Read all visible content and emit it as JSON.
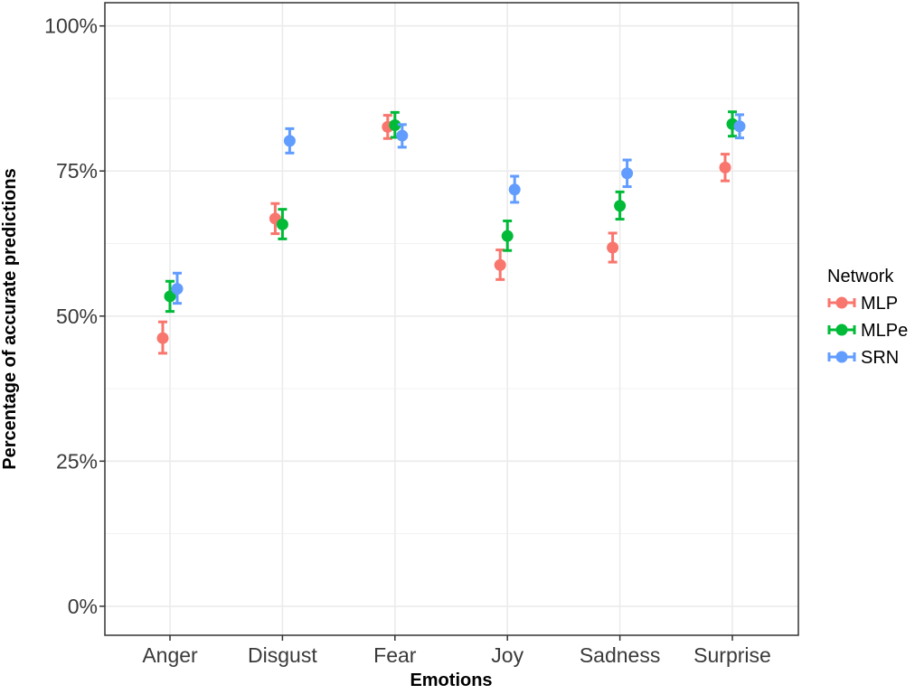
{
  "chart_data": {
    "type": "scatter",
    "xlabel": "Emotions",
    "ylabel": "Percentage of accurate predictions",
    "categories": [
      "Anger",
      "Disgust",
      "Fear",
      "Joy",
      "Sadness",
      "Surprise"
    ],
    "yticks": [
      0,
      25,
      50,
      75,
      100
    ],
    "ytick_labels": [
      "0%",
      "25%",
      "50%",
      "75%",
      "100%"
    ],
    "ylim": [
      -5,
      104
    ],
    "grid": true,
    "legend": {
      "title": "Network",
      "position": "right"
    },
    "series": [
      {
        "name": "MLP",
        "color": "#F8766D",
        "values": [
          46.2,
          66.8,
          82.6,
          58.8,
          61.8,
          75.6
        ],
        "err_low": [
          43.6,
          64.2,
          80.6,
          56.3,
          59.3,
          73.3
        ],
        "err_high": [
          49.0,
          69.4,
          84.6,
          61.4,
          64.3,
          77.9
        ]
      },
      {
        "name": "MLPe",
        "color": "#00BA38",
        "values": [
          53.4,
          65.8,
          82.9,
          63.8,
          69.0,
          83.1
        ],
        "err_low": [
          50.8,
          63.3,
          80.8,
          61.3,
          66.7,
          81.0
        ],
        "err_high": [
          56.0,
          68.4,
          85.1,
          66.4,
          71.4,
          85.2
        ]
      },
      {
        "name": "SRN",
        "color": "#619CFF",
        "values": [
          54.7,
          80.2,
          81.1,
          71.8,
          74.6,
          82.7
        ],
        "err_low": [
          52.2,
          78.1,
          79.1,
          69.6,
          72.3,
          80.7
        ],
        "err_high": [
          57.4,
          82.3,
          83.0,
          74.1,
          76.9,
          84.7
        ]
      }
    ]
  }
}
